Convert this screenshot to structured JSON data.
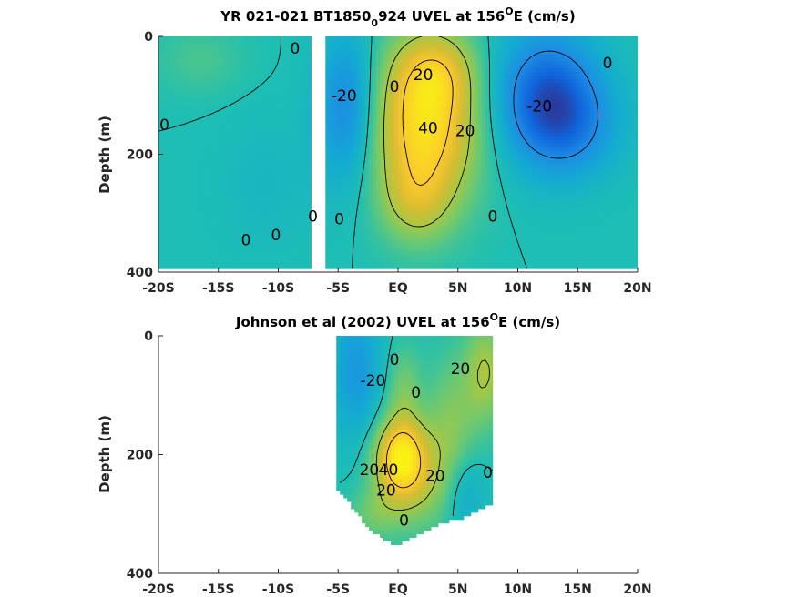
{
  "chart_data": [
    {
      "type": "heatmap",
      "title": {
        "prefix": "YR 021-021 BT1850",
        "sub": "0",
        "mid": "924 UVEL at 156",
        "sup": "O",
        "suffix": "E (cm/s)"
      },
      "ylabel": "Depth (m)",
      "ylim": [
        0,
        400
      ],
      "yticks": [
        0,
        200,
        400
      ],
      "xlim": [
        -20,
        20
      ],
      "xticks": [
        -20,
        -15,
        -10,
        -5,
        0,
        5,
        10,
        15,
        20
      ],
      "xticklabels": [
        "-20S",
        "-15S",
        "-10S",
        "-5S",
        "EQ",
        "5N",
        "10N",
        "15N",
        "20N"
      ],
      "data_extent": {
        "x": [
          -20,
          20
        ],
        "y": [
          0,
          395
        ]
      },
      "gap": [
        -7.4,
        -6.2
      ],
      "blobs": [
        {
          "x": 2.3,
          "y": 150,
          "amp": 48,
          "sx": 3.0,
          "sy": 95
        },
        {
          "x": 3.2,
          "y": 60,
          "amp": 18,
          "sx": 2.2,
          "sy": 45
        },
        {
          "x": 1.5,
          "y": 280,
          "amp": 16,
          "sx": 2.0,
          "sy": 50
        },
        {
          "x": 12.5,
          "y": 100,
          "amp": -30,
          "sx": 3.2,
          "sy": 80
        },
        {
          "x": 14.5,
          "y": 160,
          "amp": -12,
          "sx": 3.0,
          "sy": 60
        },
        {
          "x": -4.2,
          "y": 120,
          "amp": -22,
          "sx": 1.8,
          "sy": 90
        },
        {
          "x": -16.5,
          "y": 40,
          "amp": 6,
          "sx": 2.5,
          "sy": 40
        },
        {
          "x": -11,
          "y": 250,
          "amp": -4,
          "sx": 3,
          "sy": 80
        }
      ],
      "contours": [
        {
          "level": 0,
          "label": "0"
        },
        {
          "level": -20,
          "label": "-20"
        },
        {
          "level": 20,
          "label": "20"
        },
        {
          "level": 40,
          "label": "40"
        }
      ],
      "contour_labels": [
        {
          "text": "0",
          "x": -8.6,
          "y": 20
        },
        {
          "text": "0",
          "x": -19.5,
          "y": 150
        },
        {
          "text": "0",
          "x": -12.7,
          "y": 345
        },
        {
          "text": "0",
          "x": -10.2,
          "y": 337
        },
        {
          "text": "0",
          "x": -7.1,
          "y": 305
        },
        {
          "text": "0",
          "x": -4.9,
          "y": 310
        },
        {
          "text": "0",
          "x": -0.3,
          "y": 85
        },
        {
          "text": "0",
          "x": 7.9,
          "y": 305
        },
        {
          "text": "0",
          "x": 17.5,
          "y": 45
        },
        {
          "text": "-20",
          "x": -4.5,
          "y": 100
        },
        {
          "text": "-20",
          "x": 11.8,
          "y": 118
        },
        {
          "text": "20",
          "x": 2.1,
          "y": 65
        },
        {
          "text": "20",
          "x": 5.6,
          "y": 160
        },
        {
          "text": "40",
          "x": 2.5,
          "y": 155
        }
      ]
    },
    {
      "type": "heatmap",
      "title": {
        "prefix": "Johnson et al (2002) UVEL at 156",
        "sup": "O",
        "suffix": "E (cm/s)"
      },
      "ylabel": "Depth (m)",
      "ylim": [
        0,
        400
      ],
      "yticks": [
        0,
        200,
        400
      ],
      "xlim": [
        -20,
        20
      ],
      "xticks": [
        -20,
        -15,
        -10,
        -5,
        0,
        5,
        10,
        15,
        20
      ],
      "xticklabels": [
        "-20S",
        "-15S",
        "-10S",
        "-5S",
        "EQ",
        "5N",
        "10N",
        "15N",
        "20N"
      ],
      "data_extent": {
        "x": [
          -5,
          8
        ]
      },
      "bottom_profile": [
        [
          -5,
          262
        ],
        [
          -4.6,
          268
        ],
        [
          -4.2,
          275
        ],
        [
          -3.8,
          290
        ],
        [
          -3.4,
          300
        ],
        [
          -3.0,
          310
        ],
        [
          -2.6,
          318
        ],
        [
          -2.2,
          326
        ],
        [
          -1.8,
          334
        ],
        [
          -1.4,
          340
        ],
        [
          -1.0,
          346
        ],
        [
          -0.6,
          350
        ],
        [
          -0.2,
          352
        ],
        [
          0.2,
          350
        ],
        [
          0.6,
          346
        ],
        [
          1.0,
          340
        ],
        [
          1.4,
          336
        ],
        [
          1.8,
          332
        ],
        [
          2.2,
          330
        ],
        [
          2.6,
          326
        ],
        [
          3.0,
          322
        ],
        [
          3.4,
          318
        ],
        [
          3.8,
          314
        ],
        [
          4.2,
          312
        ],
        [
          4.6,
          310
        ],
        [
          5.0,
          308
        ],
        [
          5.4,
          306
        ],
        [
          5.8,
          304
        ],
        [
          6.2,
          300
        ],
        [
          6.6,
          294
        ],
        [
          7.0,
          290
        ],
        [
          7.4,
          286
        ],
        [
          7.8,
          282
        ],
        [
          8.0,
          280
        ]
      ],
      "blobs": [
        {
          "x": 0.2,
          "y": 205,
          "amp": 45,
          "sx": 1.4,
          "sy": 45
        },
        {
          "x": 1.5,
          "y": 240,
          "amp": 18,
          "sx": 2.2,
          "sy": 60
        },
        {
          "x": 4.5,
          "y": 150,
          "amp": 14,
          "sx": 1.5,
          "sy": 80
        },
        {
          "x": 7.3,
          "y": 60,
          "amp": 20,
          "sx": 1.2,
          "sy": 60
        },
        {
          "x": 0.5,
          "y": 90,
          "amp": 12,
          "sx": 1.0,
          "sy": 50
        },
        {
          "x": -3.5,
          "y": 60,
          "amp": -16,
          "sx": 1.5,
          "sy": 80
        },
        {
          "x": 5.5,
          "y": 260,
          "amp": -12,
          "sx": 1.2,
          "sy": 50
        },
        {
          "x": -2,
          "y": 300,
          "amp": 10,
          "sx": 1.5,
          "sy": 30
        }
      ],
      "contours": [
        {
          "level": 0,
          "label": "0"
        },
        {
          "level": -20,
          "label": "-20"
        },
        {
          "level": 20,
          "label": "20"
        },
        {
          "level": 40,
          "label": "40"
        }
      ],
      "contour_labels": [
        {
          "text": "0",
          "x": -0.3,
          "y": 40
        },
        {
          "text": "0",
          "x": 1.5,
          "y": 95
        },
        {
          "text": "-20",
          "x": -2.1,
          "y": 75
        },
        {
          "text": "20",
          "x": 5.2,
          "y": 55
        },
        {
          "text": "20",
          "x": -2.4,
          "y": 225
        },
        {
          "text": "40",
          "x": -0.8,
          "y": 225
        },
        {
          "text": "20",
          "x": -1.0,
          "y": 260
        },
        {
          "text": "20",
          "x": 3.1,
          "y": 235
        },
        {
          "text": "0",
          "x": 7.5,
          "y": 230
        },
        {
          "text": "0",
          "x": 0.5,
          "y": 310
        }
      ]
    }
  ]
}
